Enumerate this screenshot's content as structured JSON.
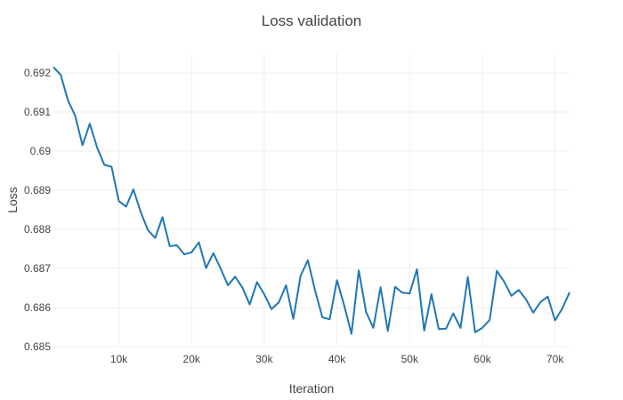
{
  "chart_data": {
    "type": "line",
    "title": "Loss validation",
    "xlabel": "Iteration",
    "ylabel": "Loss",
    "xlim": [
      1000,
      72000
    ],
    "ylim": [
      0.685,
      0.6925
    ],
    "x_ticks": [
      10000,
      20000,
      30000,
      40000,
      50000,
      60000,
      70000
    ],
    "x_tick_labels": [
      "10k",
      "20k",
      "30k",
      "40k",
      "50k",
      "60k",
      "70k"
    ],
    "y_ticks": [
      0.685,
      0.686,
      0.687,
      0.688,
      0.689,
      0.69,
      0.691,
      0.692
    ],
    "y_tick_labels": [
      "0.685",
      "0.686",
      "0.687",
      "0.688",
      "0.689",
      "0.69",
      "0.691",
      "0.692"
    ],
    "grid": true,
    "legend": "none",
    "colors": {
      "line": "#1f77b4",
      "grid": "#eeeeee",
      "text": "#444444"
    },
    "series": [
      {
        "x": [
          1000,
          2000,
          3000,
          4000,
          5000,
          6000,
          7000,
          8000,
          9000,
          10000,
          11000,
          12000,
          13000,
          14000,
          15000,
          16000,
          17000,
          18000,
          19000,
          20000,
          21000,
          22000,
          23000,
          24000,
          25000,
          26000,
          27000,
          28000,
          29000,
          30000,
          31000,
          32000,
          33000,
          34000,
          35000,
          36000,
          37000,
          38000,
          39000,
          40000,
          41000,
          42000,
          43000,
          44000,
          45000,
          46000,
          47000,
          48000,
          49000,
          50000,
          51000,
          52000,
          53000,
          54000,
          55000,
          56000,
          57000,
          58000,
          59000,
          60000,
          61000,
          62000,
          63000,
          64000,
          65000,
          66000,
          67000,
          68000,
          69000,
          70000,
          71000,
          72000
        ],
        "y": [
          0.69215,
          0.69195,
          0.6913,
          0.6909,
          0.69015,
          0.6907,
          0.6901,
          0.68965,
          0.6896,
          0.68872,
          0.68858,
          0.68902,
          0.68845,
          0.68798,
          0.68778,
          0.68831,
          0.68757,
          0.68759,
          0.68736,
          0.68741,
          0.68767,
          0.68701,
          0.68739,
          0.687,
          0.68657,
          0.68679,
          0.68651,
          0.68608,
          0.68665,
          0.68634,
          0.68596,
          0.68613,
          0.68657,
          0.68571,
          0.68681,
          0.68721,
          0.68643,
          0.68575,
          0.6857,
          0.6867,
          0.68605,
          0.68533,
          0.68695,
          0.68589,
          0.68548,
          0.68652,
          0.6854,
          0.68653,
          0.68638,
          0.68636,
          0.68698,
          0.68541,
          0.68634,
          0.68545,
          0.68546,
          0.68585,
          0.68548,
          0.68678,
          0.68537,
          0.68548,
          0.68568,
          0.68694,
          0.68666,
          0.6863,
          0.68645,
          0.68621,
          0.68587,
          0.68614,
          0.68628,
          0.68567,
          0.68598,
          0.68639
        ]
      }
    ]
  }
}
